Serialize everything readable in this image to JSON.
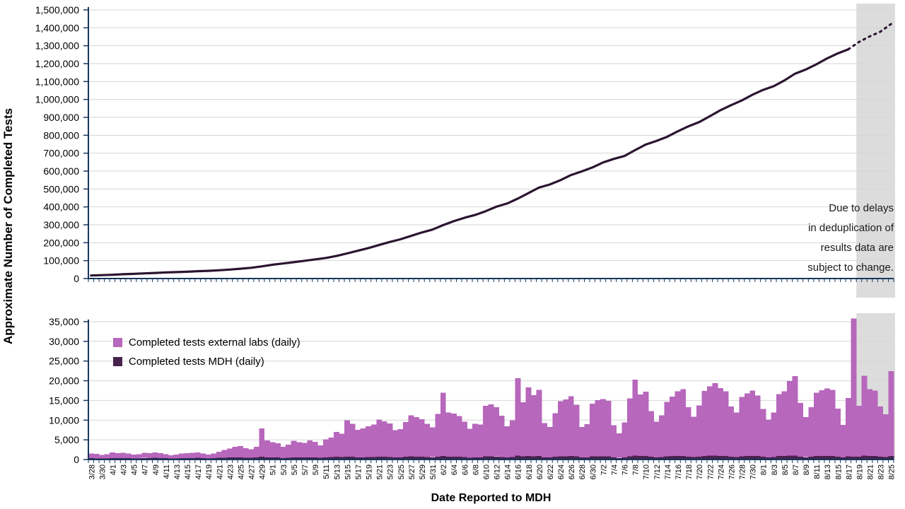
{
  "axis_titles": {
    "y": "Approximate Number of Completed Tests",
    "x": "Date Reported to MDH"
  },
  "annotation": {
    "lines": [
      "Due to delays",
      "in deduplication of",
      "results data are",
      "subject to change."
    ]
  },
  "legend": {
    "items": [
      {
        "label": "Completed tests external labs (daily)",
        "color": "#b767bc"
      },
      {
        "label": "Completed tests MDH (daily)",
        "color": "#47224c"
      }
    ]
  },
  "colors": {
    "axis": "#17375e",
    "grid": "#d6d6d6",
    "shaded_band": "#dcdcdc",
    "cumulative_line": "#2b1530",
    "external_bar": "#b767bc",
    "mdh_bar": "#47224c"
  },
  "chart_data": [
    {
      "type": "line",
      "name": "cumulative-completed-tests",
      "ylabel": "Approximate Number of Completed Tests",
      "ylim": [
        0,
        1500000
      ],
      "ytick_step": 100000,
      "yticks": [
        "0",
        "100,000",
        "200,000",
        "300,000",
        "400,000",
        "500,000",
        "600,000",
        "700,000",
        "800,000",
        "900,000",
        "1,000,000",
        "1,100,000",
        "1,200,000",
        "1,300,000",
        "1,400,000",
        "1,500,000"
      ],
      "grid": true,
      "x": [
        "3/28",
        "3/30",
        "4/1",
        "4/3",
        "4/5",
        "4/7",
        "4/9",
        "4/11",
        "4/13",
        "4/15",
        "4/17",
        "4/19",
        "4/21",
        "4/23",
        "4/25",
        "4/27",
        "4/29",
        "5/1",
        "5/3",
        "5/5",
        "5/7",
        "5/9",
        "5/11",
        "5/13",
        "5/15",
        "5/17",
        "5/19",
        "5/21",
        "5/23",
        "5/25",
        "5/27",
        "5/29",
        "5/31",
        "6/2",
        "6/4",
        "6/6",
        "6/8",
        "6/10",
        "6/12",
        "6/14",
        "6/16",
        "6/18",
        "6/20",
        "6/22",
        "6/24",
        "6/26",
        "6/28",
        "6/30",
        "7/2",
        "7/4",
        "7/6",
        "7/8",
        "7/10",
        "7/12",
        "7/14",
        "7/16",
        "7/18",
        "7/20",
        "7/22",
        "7/24",
        "7/26",
        "7/28",
        "7/30",
        "8/1",
        "8/3",
        "8/5",
        "8/7",
        "8/9",
        "8/11",
        "8/13",
        "8/15",
        "8/17",
        "8/19",
        "8/21",
        "8/23",
        "8/25"
      ],
      "values": [
        17000,
        19000,
        21000,
        24000,
        26000,
        29000,
        31000,
        34000,
        36000,
        38000,
        41000,
        43000,
        46000,
        50000,
        55000,
        60000,
        68000,
        77000,
        84000,
        91000,
        99000,
        107000,
        115000,
        126000,
        140000,
        155000,
        170000,
        187000,
        204000,
        219000,
        238000,
        257000,
        273000,
        298000,
        320000,
        339000,
        355000,
        376000,
        401000,
        419000,
        446000,
        477000,
        508000,
        525000,
        549000,
        578000,
        598000,
        620000,
        648000,
        668000,
        684000,
        717000,
        748000,
        768000,
        791000,
        822000,
        850000,
        873000,
        906000,
        940000,
        968000,
        994000,
        1026000,
        1053000,
        1074000,
        1106000,
        1144000,
        1167000,
        1196000,
        1229000,
        1257000,
        1280000,
        1321000,
        1352000,
        1378000,
        1421000
      ],
      "dotted_from_index": 71,
      "shaded_region_start": "8/19"
    },
    {
      "type": "bar",
      "stacked": true,
      "ylim": [
        0,
        35000
      ],
      "ytick_step": 5000,
      "yticks": [
        "0",
        "5,000",
        "10,000",
        "15,000",
        "20,000",
        "25,000",
        "30,000",
        "35,000"
      ],
      "grid": true,
      "xlabel": "Date Reported to MDH",
      "x": [
        "3/28",
        "3/29",
        "3/30",
        "3/31",
        "4/1",
        "4/2",
        "4/3",
        "4/4",
        "4/5",
        "4/6",
        "4/7",
        "4/8",
        "4/9",
        "4/10",
        "4/11",
        "4/12",
        "4/13",
        "4/14",
        "4/15",
        "4/16",
        "4/17",
        "4/18",
        "4/19",
        "4/20",
        "4/21",
        "4/22",
        "4/23",
        "4/24",
        "4/25",
        "4/26",
        "4/27",
        "4/28",
        "4/29",
        "4/30",
        "5/1",
        "5/2",
        "5/3",
        "5/4",
        "5/5",
        "5/6",
        "5/7",
        "5/8",
        "5/9",
        "5/10",
        "5/11",
        "5/12",
        "5/13",
        "5/14",
        "5/15",
        "5/16",
        "5/17",
        "5/18",
        "5/19",
        "5/20",
        "5/21",
        "5/22",
        "5/23",
        "5/24",
        "5/25",
        "5/26",
        "5/27",
        "5/28",
        "5/29",
        "5/30",
        "5/31",
        "6/1",
        "6/2",
        "6/3",
        "6/4",
        "6/5",
        "6/6",
        "6/7",
        "6/8",
        "6/9",
        "6/10",
        "6/11",
        "6/12",
        "6/13",
        "6/14",
        "6/15",
        "6/16",
        "6/17",
        "6/18",
        "6/19",
        "6/20",
        "6/21",
        "6/22",
        "6/23",
        "6/24",
        "6/25",
        "6/26",
        "6/27",
        "6/28",
        "6/29",
        "6/30",
        "7/1",
        "7/2",
        "7/3",
        "7/4",
        "7/5",
        "7/6",
        "7/7",
        "7/8",
        "7/9",
        "7/10",
        "7/11",
        "7/12",
        "7/13",
        "7/14",
        "7/15",
        "7/16",
        "7/17",
        "7/18",
        "7/19",
        "7/20",
        "7/21",
        "7/22",
        "7/23",
        "7/24",
        "7/25",
        "7/26",
        "7/27",
        "7/28",
        "7/29",
        "7/30",
        "7/31",
        "8/1",
        "8/2",
        "8/3",
        "8/4",
        "8/5",
        "8/6",
        "8/7",
        "8/8",
        "8/9",
        "8/10",
        "8/11",
        "8/12",
        "8/13",
        "8/14",
        "8/15",
        "8/16",
        "8/17",
        "8/18",
        "8/19",
        "8/20",
        "8/21",
        "8/22",
        "8/23",
        "8/24",
        "8/25"
      ],
      "series": [
        {
          "name": "Completed tests external labs (daily)",
          "color": "#b767bc",
          "values": [
            1200,
            1100,
            950,
            1050,
            1400,
            1250,
            1300,
            1150,
            950,
            1050,
            1300,
            1250,
            1400,
            1250,
            1050,
            850,
            950,
            1150,
            1250,
            1350,
            1400,
            1200,
            1000,
            1150,
            1500,
            1900,
            2300,
            2700,
            2900,
            2400,
            2200,
            2700,
            7200,
            4300,
            3900,
            3600,
            2800,
            3300,
            4200,
            3900,
            3700,
            4300,
            4000,
            3200,
            4600,
            5000,
            6300,
            5900,
            9200,
            8400,
            7000,
            7300,
            7800,
            8200,
            9400,
            9000,
            8500,
            6900,
            7200,
            8800,
            10400,
            10000,
            9500,
            8400,
            7600,
            10900,
            16100,
            11200,
            11000,
            10400,
            9000,
            7300,
            8500,
            8300,
            12900,
            13200,
            12500,
            10500,
            7900,
            9400,
            19600,
            13700,
            17400,
            15500,
            16800,
            8700,
            7800,
            11100,
            14000,
            14400,
            15200,
            13100,
            7800,
            8400,
            13400,
            14300,
            14500,
            14100,
            8200,
            6200,
            8900,
            14700,
            19300,
            15600,
            16300,
            11600,
            9000,
            10600,
            13800,
            15100,
            16400,
            16900,
            12600,
            10300,
            13000,
            16500,
            17600,
            18400,
            17200,
            16400,
            12700,
            11300,
            15000,
            15900,
            16600,
            15400,
            12100,
            9600,
            11300,
            15700,
            16400,
            18900,
            20200,
            13600,
            10200,
            12600,
            16100,
            16700,
            17100,
            16800,
            12200,
            8300,
            14800,
            35100,
            12900,
            20300,
            17000,
            16600,
            12800,
            10900,
            21500
          ]
        },
        {
          "name": "Completed tests MDH (daily)",
          "color": "#47224c",
          "values": [
            350,
            300,
            250,
            300,
            400,
            380,
            390,
            350,
            280,
            300,
            400,
            380,
            420,
            380,
            320,
            260,
            300,
            350,
            380,
            400,
            420,
            360,
            300,
            350,
            450,
            480,
            500,
            520,
            540,
            450,
            420,
            500,
            700,
            560,
            520,
            500,
            400,
            450,
            560,
            520,
            500,
            560,
            520,
            420,
            560,
            600,
            700,
            650,
            750,
            680,
            560,
            580,
            620,
            650,
            720,
            700,
            660,
            540,
            560,
            680,
            780,
            750,
            720,
            640,
            580,
            700,
            900,
            720,
            700,
            680,
            600,
            480,
            560,
            540,
            780,
            800,
            760,
            640,
            500,
            600,
            1000,
            820,
            900,
            840,
            880,
            560,
            500,
            680,
            820,
            840,
            880,
            780,
            500,
            540,
            780,
            820,
            840,
            820,
            520,
            400,
            560,
            840,
            980,
            880,
            900,
            680,
            560,
            640,
            800,
            860,
            900,
            920,
            720,
            600,
            740,
            900,
            950,
            980,
            930,
            900,
            720,
            660,
            840,
            880,
            900,
            860,
            700,
            560,
            660,
            860,
            900,
            980,
            1000,
            760,
            580,
            700,
            880,
            900,
            920,
            900,
            680,
            500,
            820,
            700,
            720,
            1000,
            900,
            880,
            700,
            600,
            900
          ]
        }
      ],
      "shaded_region_start": "8/19"
    }
  ]
}
